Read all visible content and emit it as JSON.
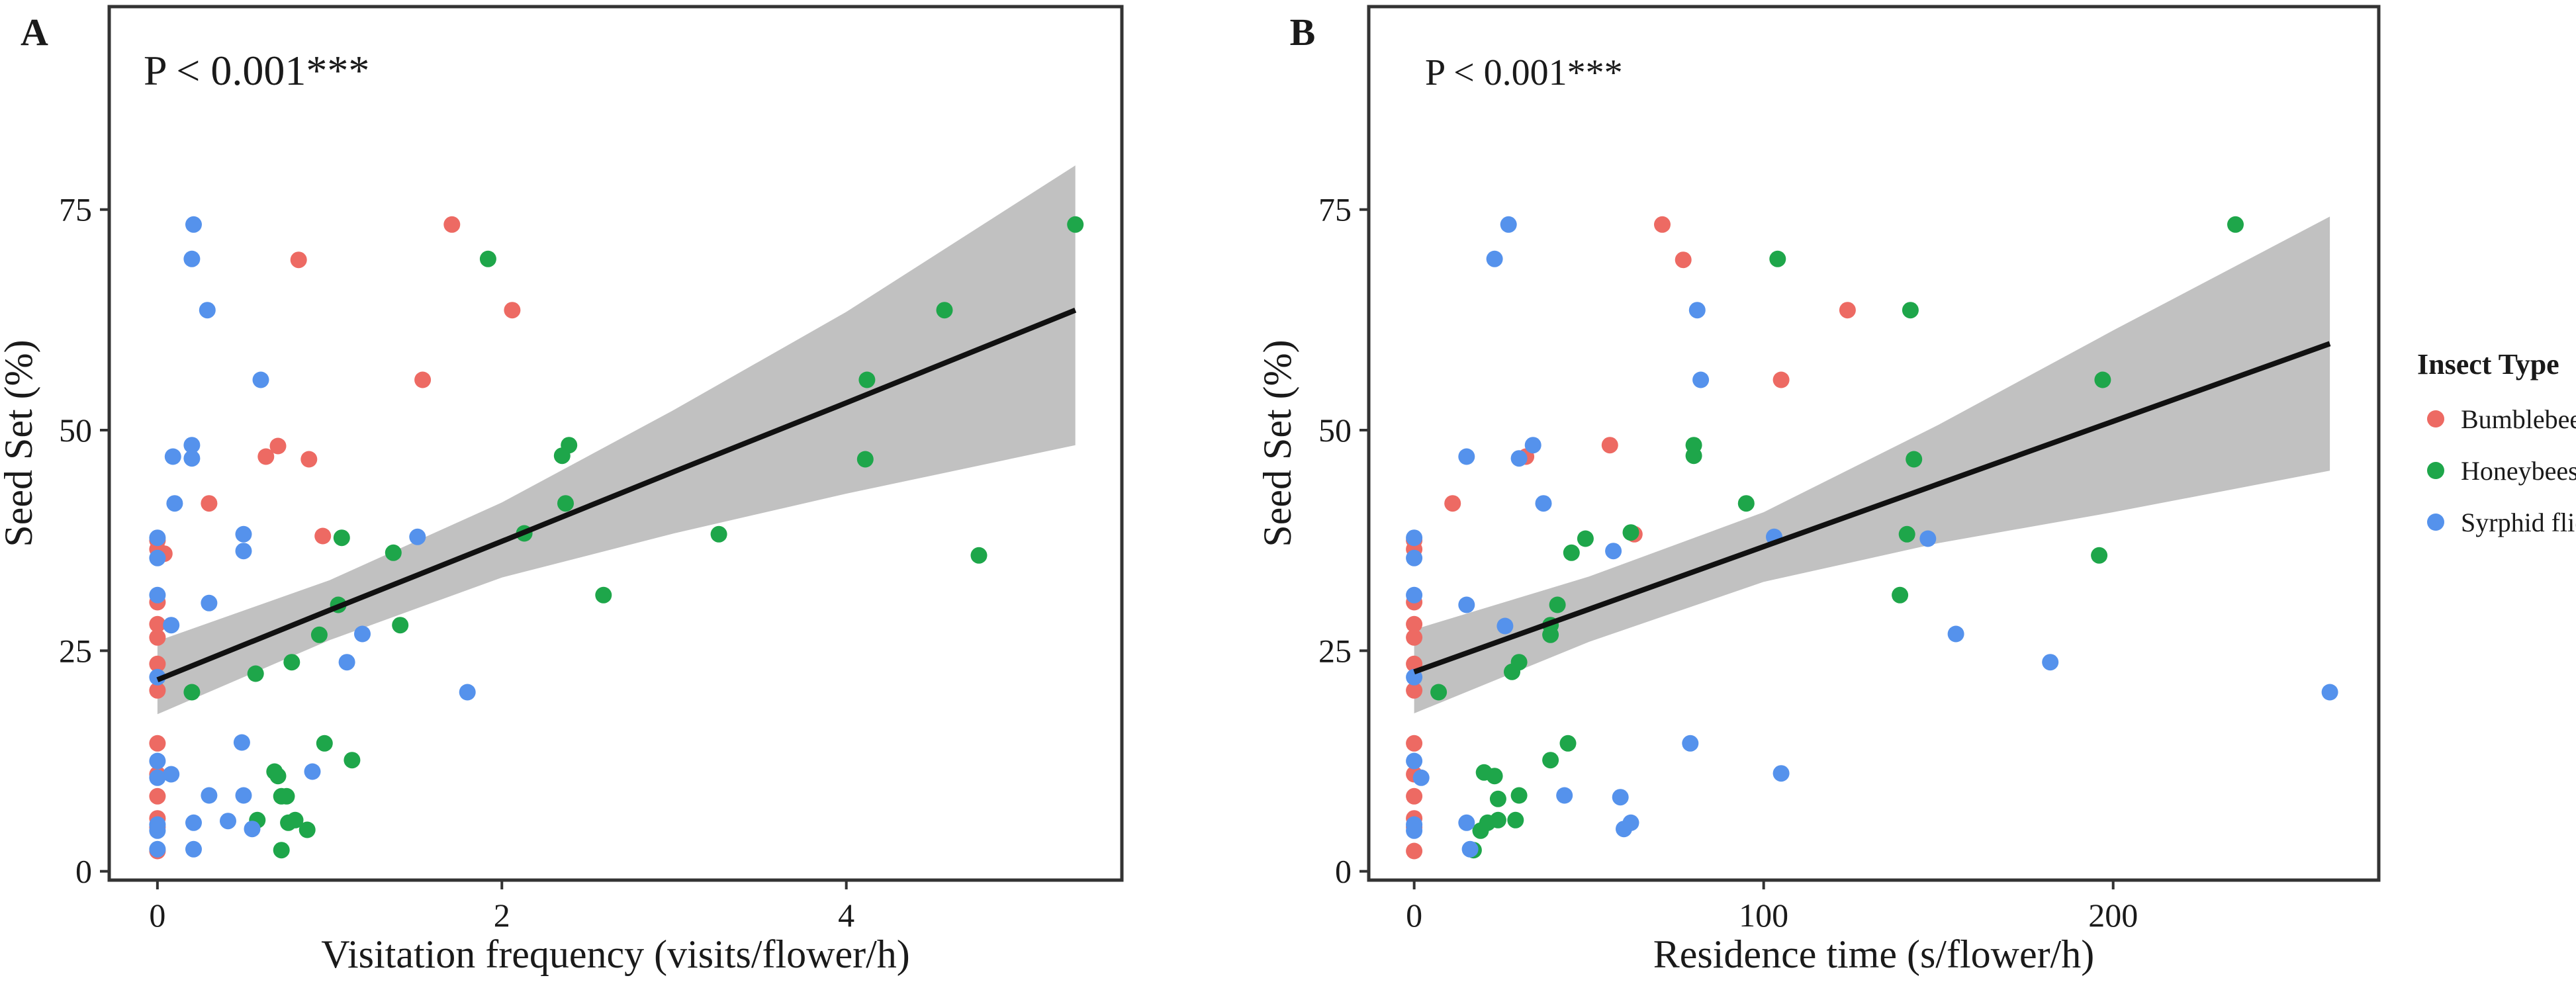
{
  "figure": {
    "legend": {
      "title": "Insect Type",
      "placement": "right",
      "items": [
        {
          "label": "Bumblebee",
          "color": "#ED6A63"
        },
        {
          "label": "Honeybees",
          "color": "#1EA64A"
        },
        {
          "label": "Syrphid flie",
          "color": "#5592EC"
        }
      ]
    },
    "line_color": "#111111",
    "band_color": "#BEBEBE"
  },
  "chart_data": [
    {
      "type": "scatter",
      "panel_label": "A",
      "annotation": "P < 0.001***",
      "xlabel": "Visitation frequency (visits/flower/h)",
      "ylabel": "Seed Set (%)",
      "xlim": [
        -0.28,
        5.6
      ],
      "ylim": [
        -1,
        98
      ],
      "xticks": [
        0,
        2,
        4
      ],
      "yticks": [
        0,
        25,
        50,
        75
      ],
      "grid": false,
      "fit": {
        "x": [
          0,
          1,
          2,
          3,
          4,
          5.33
        ],
        "y": [
          21.7,
          29.6,
          37.4,
          45.3,
          53.1,
          63.6
        ],
        "lower": [
          17.8,
          26.2,
          33.3,
          38.3,
          42.8,
          48.3
        ],
        "upper": [
          26.1,
          33.0,
          41.8,
          52.3,
          63.4,
          80.0
        ]
      },
      "series": [
        {
          "name": "Bumblebee",
          "points": [
            [
              0,
              2.3
            ],
            [
              0,
              5
            ],
            [
              0,
              6
            ],
            [
              0,
              8.5
            ],
            [
              0,
              11
            ],
            [
              0,
              14.5
            ],
            [
              0,
              20.5
            ],
            [
              0,
              23.5
            ],
            [
              0,
              26.5
            ],
            [
              0,
              28
            ],
            [
              0,
              30.5
            ],
            [
              0,
              36.5
            ],
            [
              0,
              37.5
            ],
            [
              0.04,
              36
            ],
            [
              0.3,
              41.7
            ],
            [
              0.63,
              47
            ],
            [
              0.7,
              48.2
            ],
            [
              0.82,
              69.3
            ],
            [
              0.88,
              46.7
            ],
            [
              0.96,
              38
            ],
            [
              1.54,
              55.7
            ],
            [
              1.71,
              73.3
            ],
            [
              2.06,
              63.6
            ]
          ]
        },
        {
          "name": "Honeybees",
          "points": [
            [
              0.2,
              20.3
            ],
            [
              0.57,
              22.4
            ],
            [
              0.58,
              5.8
            ],
            [
              0.68,
              11.3
            ],
            [
              0.7,
              10.8
            ],
            [
              0.72,
              8.5
            ],
            [
              0.72,
              2.4
            ],
            [
              0.75,
              8.5
            ],
            [
              0.76,
              5.5
            ],
            [
              0.78,
              23.7
            ],
            [
              0.8,
              5.8
            ],
            [
              0.87,
              4.7
            ],
            [
              0.94,
              26.8
            ],
            [
              0.97,
              14.5
            ],
            [
              1.05,
              30.2
            ],
            [
              1.07,
              37.8
            ],
            [
              1.13,
              12.6
            ],
            [
              1.37,
              36.1
            ],
            [
              1.41,
              27.9
            ],
            [
              1.92,
              69.4
            ],
            [
              2.13,
              38.3
            ],
            [
              2.35,
              47.1
            ],
            [
              2.37,
              41.7
            ],
            [
              2.39,
              48.3
            ],
            [
              2.59,
              31.3
            ],
            [
              3.26,
              38.2
            ],
            [
              4.11,
              46.7
            ],
            [
              4.12,
              55.7
            ],
            [
              4.57,
              63.6
            ],
            [
              4.77,
              35.8
            ],
            [
              5.33,
              73.3
            ]
          ]
        },
        {
          "name": "Syrphid flie",
          "points": [
            [
              0,
              2.5
            ],
            [
              0,
              4.6
            ],
            [
              0,
              5.3
            ],
            [
              0,
              10.6
            ],
            [
              0,
              12.5
            ],
            [
              0,
              22
            ],
            [
              0,
              31.3
            ],
            [
              0,
              35.5
            ],
            [
              0,
              37.8
            ],
            [
              0.08,
              11
            ],
            [
              0.08,
              27.9
            ],
            [
              0.09,
              47
            ],
            [
              0.1,
              41.7
            ],
            [
              0.2,
              48.3
            ],
            [
              0.2,
              46.8
            ],
            [
              0.2,
              69.4
            ],
            [
              0.21,
              73.3
            ],
            [
              0.21,
              2.5
            ],
            [
              0.21,
              5.5
            ],
            [
              0.29,
              63.6
            ],
            [
              0.3,
              8.6
            ],
            [
              0.3,
              30.4
            ],
            [
              0.41,
              5.7
            ],
            [
              0.49,
              14.6
            ],
            [
              0.5,
              38.2
            ],
            [
              0.5,
              36.3
            ],
            [
              0.5,
              8.6
            ],
            [
              0.55,
              4.8
            ],
            [
              0.6,
              55.7
            ],
            [
              0.9,
              11.3
            ],
            [
              1.1,
              23.7
            ],
            [
              1.19,
              26.9
            ],
            [
              1.51,
              37.9
            ],
            [
              1.8,
              20.3
            ]
          ]
        }
      ]
    },
    {
      "type": "scatter",
      "panel_label": "B",
      "annotation": "P < 0.001***",
      "xlabel": "Residence time (s/flower/h)",
      "ylabel": "Seed Set (%)",
      "xlim": [
        -13,
        276
      ],
      "ylim": [
        -1,
        98
      ],
      "xticks": [
        0,
        100,
        200
      ],
      "yticks": [
        0,
        25,
        50,
        75
      ],
      "grid": false,
      "fit": {
        "x": [
          0,
          50,
          100,
          150,
          200,
          262
        ],
        "y": [
          22.6,
          29.7,
          36.8,
          43.9,
          51.0,
          59.8
        ],
        "lower": [
          17.9,
          26.0,
          32.8,
          37.2,
          40.7,
          45.4
        ],
        "upper": [
          27.4,
          33.4,
          40.7,
          50.6,
          61.3,
          74.2
        ]
      },
      "series": [
        {
          "name": "Bumblebee",
          "points": [
            [
              0,
              2.3
            ],
            [
              0,
              5
            ],
            [
              0,
              6
            ],
            [
              0,
              8.5
            ],
            [
              0,
              11
            ],
            [
              0,
              14.5
            ],
            [
              0,
              20.5
            ],
            [
              0,
              23.5
            ],
            [
              0,
              26.5
            ],
            [
              0,
              28
            ],
            [
              0,
              30.5
            ],
            [
              0,
              36.5
            ],
            [
              0,
              37.5
            ],
            [
              11,
              41.7
            ],
            [
              32,
              47
            ],
            [
              56,
              48.3
            ],
            [
              63,
              38.2
            ],
            [
              71,
              73.3
            ],
            [
              77,
              69.3
            ],
            [
              105,
              55.7
            ],
            [
              124,
              63.6
            ]
          ]
        },
        {
          "name": "Honeybees",
          "points": [
            [
              7,
              20.3
            ],
            [
              17,
              2.4
            ],
            [
              19,
              4.6
            ],
            [
              20,
              11.2
            ],
            [
              21,
              5.5
            ],
            [
              23,
              10.8
            ],
            [
              24,
              8.2
            ],
            [
              24,
              5.8
            ],
            [
              28,
              22.6
            ],
            [
              29,
              5.8
            ],
            [
              30,
              23.7
            ],
            [
              30,
              8.6
            ],
            [
              39,
              12.6
            ],
            [
              39,
              26.8
            ],
            [
              39,
              27.9
            ],
            [
              41,
              30.2
            ],
            [
              44,
              14.5
            ],
            [
              45,
              36.1
            ],
            [
              49,
              37.7
            ],
            [
              62,
              38.4
            ],
            [
              80,
              48.3
            ],
            [
              80,
              47.1
            ],
            [
              95,
              41.7
            ],
            [
              104,
              69.4
            ],
            [
              139,
              31.3
            ],
            [
              141,
              38.2
            ],
            [
              142,
              63.6
            ],
            [
              143,
              46.7
            ],
            [
              196,
              35.8
            ],
            [
              197,
              55.7
            ],
            [
              235,
              73.3
            ]
          ]
        },
        {
          "name": "Syrphid flie",
          "points": [
            [
              0,
              4.6
            ],
            [
              0,
              5.3
            ],
            [
              0,
              12.5
            ],
            [
              0,
              22
            ],
            [
              0,
              31.3
            ],
            [
              0,
              35.5
            ],
            [
              0,
              37.8
            ],
            [
              2,
              10.6
            ],
            [
              15,
              5.5
            ],
            [
              15,
              30.2
            ],
            [
              15,
              47
            ],
            [
              16,
              2.5
            ],
            [
              23,
              69.4
            ],
            [
              26,
              27.8
            ],
            [
              27,
              73.3
            ],
            [
              30,
              46.8
            ],
            [
              34,
              48.3
            ],
            [
              37,
              41.7
            ],
            [
              43,
              8.6
            ],
            [
              57,
              36.3
            ],
            [
              59,
              8.4
            ],
            [
              60,
              4.8
            ],
            [
              62,
              5.5
            ],
            [
              79,
              14.5
            ],
            [
              81,
              63.6
            ],
            [
              82,
              55.7
            ],
            [
              103,
              37.9
            ],
            [
              105,
              11.1
            ],
            [
              147,
              37.7
            ],
            [
              155,
              26.9
            ],
            [
              182,
              23.7
            ],
            [
              262,
              20.3
            ]
          ]
        }
      ]
    }
  ]
}
